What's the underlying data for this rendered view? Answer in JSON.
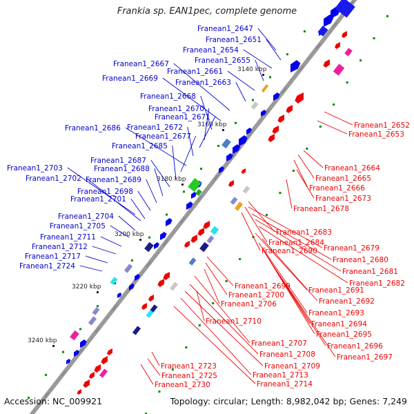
{
  "title": "Frankia sp. EAN1pec, complete genome",
  "colors": {
    "backbone": "#9a9a9a",
    "top_strand_labels": "#0000cc",
    "bottom_strand_labels": "#ee0000",
    "top_strand_genes": "#0000ee",
    "bottom_strand_genes": "#ee0000",
    "tick_marks": "#008800"
  },
  "scale_labels": [
    "3140 kbp",
    "3160 kbp",
    "3180 kbp",
    "3200 kbp",
    "3220 kbp",
    "3240 kbp"
  ],
  "top_strand_genes": [
    "Franean1_2647",
    "Franean1_2651",
    "Franean1_2654",
    "Franean1_2655",
    "Franean1_2661",
    "Franean1_2663",
    "Franean1_2667",
    "Franean1_2669",
    "Franean1_2668",
    "Franean1_2670",
    "Franean1_2671",
    "Franean1_2672",
    "Franean1_2686",
    "Franean1_2677",
    "Franean1_2685",
    "Franean1_2687",
    "Franean1_2688",
    "Franean1_2703",
    "Franean1_2702",
    "Franean1_2689",
    "Franean1_2698",
    "Franean1_2701",
    "Franean1_2704",
    "Franean1_2705",
    "Franean1_2711",
    "Franean1_2712",
    "Franean1_2717",
    "Franean1_2724"
  ],
  "bottom_strand_genes": [
    "Franean1_2652",
    "Franean1_2653",
    "Franean1_2664",
    "Franean1_2665",
    "Franean1_2666",
    "Franean1_2673",
    "Franean1_2678",
    "Franean1_2683",
    "Franean1_2684",
    "Franean1_2690",
    "Franean1_2679",
    "Franean1_2680",
    "Franean1_2681",
    "Franean1_2682",
    "Franean1_2699",
    "Franean1_2691",
    "Franean1_2700",
    "Franean1_2706",
    "Franean1_2692",
    "Franean1_2693",
    "Franean1_2710",
    "Franean1_2694",
    "Franean1_2695",
    "Franean1_2707",
    "Franean1_2696",
    "Franean1_2708",
    "Franean1_2697",
    "Franean1_2709",
    "Franean1_2723",
    "Franean1_2713",
    "Franean1_2725",
    "Franean1_2714",
    "Franean1_2730"
  ],
  "footer": {
    "accession": "Accession: NC_009921",
    "summary": "Topology: circular; Length: 8,982,042 bp; Genes: 7,249"
  }
}
